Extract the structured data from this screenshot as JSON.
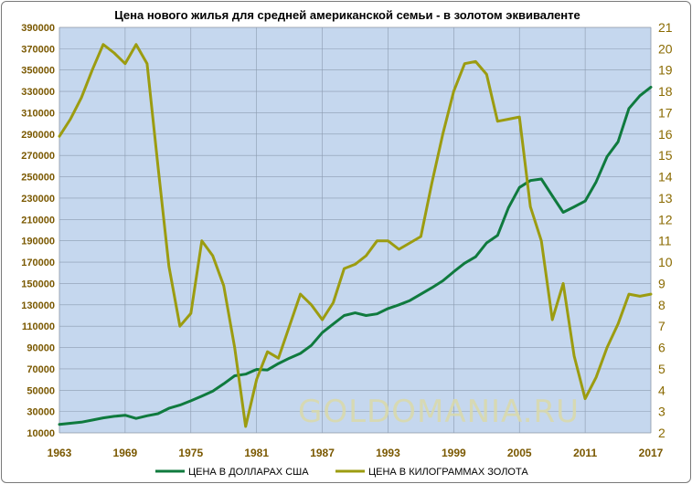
{
  "chart_data": {
    "type": "line",
    "title": "Цена нового жилья для средней американской семьи - в золотом эквиваленте",
    "watermark": "GOLDOMANIA.RU",
    "x_ticks": [
      "1963",
      "1969",
      "1975",
      "1981",
      "1987",
      "1993",
      "1999",
      "2005",
      "2011",
      "2017"
    ],
    "xlim": [
      1963,
      2017
    ],
    "y_left": {
      "ticks": [
        "390000",
        "370000",
        "350000",
        "330000",
        "310000",
        "290000",
        "270000",
        "250000",
        "230000",
        "210000",
        "190000",
        "170000",
        "150000",
        "130000",
        "110000",
        "90000",
        "70000",
        "50000",
        "30000",
        "10000"
      ],
      "ylim": [
        10000,
        390000
      ]
    },
    "y_right": {
      "ticks": [
        "21",
        "20",
        "19",
        "18",
        "17",
        "16",
        "15",
        "14",
        "13",
        "12",
        "11",
        "10",
        "9",
        "8",
        "7",
        "6",
        "5",
        "4",
        "3",
        "2"
      ],
      "ylim": [
        2,
        21
      ]
    },
    "series": [
      {
        "name": "ЦЕНА В ДОЛЛАРАХ США",
        "axis": "left",
        "color": "#0f7a3e",
        "points": [
          [
            1963,
            18000
          ],
          [
            1964,
            19000
          ],
          [
            1965,
            20000
          ],
          [
            1966,
            22000
          ],
          [
            1967,
            24000
          ],
          [
            1968,
            25500
          ],
          [
            1969,
            26500
          ],
          [
            1970,
            23500
          ],
          [
            1971,
            26000
          ],
          [
            1972,
            28000
          ],
          [
            1973,
            33000
          ],
          [
            1974,
            36000
          ],
          [
            1975,
            40000
          ],
          [
            1976,
            44500
          ],
          [
            1977,
            49000
          ],
          [
            1978,
            56000
          ],
          [
            1979,
            63500
          ],
          [
            1980,
            65000
          ],
          [
            1981,
            69500
          ],
          [
            1982,
            69000
          ],
          [
            1983,
            75000
          ],
          [
            1984,
            80000
          ],
          [
            1985,
            84500
          ],
          [
            1986,
            92000
          ],
          [
            1987,
            104000
          ],
          [
            1988,
            112000
          ],
          [
            1989,
            120000
          ],
          [
            1990,
            122500
          ],
          [
            1991,
            120000
          ],
          [
            1992,
            121500
          ],
          [
            1993,
            126500
          ],
          [
            1994,
            130000
          ],
          [
            1995,
            134000
          ],
          [
            1996,
            140000
          ],
          [
            1997,
            146000
          ],
          [
            1998,
            152500
          ],
          [
            1999,
            161000
          ],
          [
            2000,
            169000
          ],
          [
            2001,
            175000
          ],
          [
            2002,
            188000
          ],
          [
            2003,
            195000
          ],
          [
            2004,
            221000
          ],
          [
            2005,
            240000
          ],
          [
            2006,
            246500
          ],
          [
            2007,
            247900
          ],
          [
            2008,
            232100
          ],
          [
            2009,
            216700
          ],
          [
            2010,
            221800
          ],
          [
            2011,
            227200
          ],
          [
            2012,
            245200
          ],
          [
            2013,
            268900
          ],
          [
            2014,
            282800
          ],
          [
            2015,
            314000
          ],
          [
            2016,
            326000
          ],
          [
            2017,
            334000
          ]
        ]
      },
      {
        "name": "ЦЕНА В КИЛОГРАММАХ  ЗОЛОТА",
        "axis": "right",
        "color": "#9c9c10",
        "points": [
          [
            1963,
            15.9
          ],
          [
            1964,
            16.7
          ],
          [
            1965,
            17.7
          ],
          [
            1966,
            19.0
          ],
          [
            1967,
            20.2
          ],
          [
            1968,
            19.8
          ],
          [
            1969,
            19.3
          ],
          [
            1970,
            20.2
          ],
          [
            1971,
            19.3
          ],
          [
            1972,
            14.5
          ],
          [
            1973,
            9.8
          ],
          [
            1974,
            7.0
          ],
          [
            1975,
            7.6
          ],
          [
            1976,
            11.0
          ],
          [
            1977,
            10.3
          ],
          [
            1978,
            8.9
          ],
          [
            1979,
            6.0
          ],
          [
            1980,
            2.3
          ],
          [
            1981,
            4.5
          ],
          [
            1982,
            5.8
          ],
          [
            1983,
            5.5
          ],
          [
            1984,
            7.0
          ],
          [
            1985,
            8.5
          ],
          [
            1986,
            8.0
          ],
          [
            1987,
            7.3
          ],
          [
            1988,
            8.1
          ],
          [
            1989,
            9.7
          ],
          [
            1990,
            9.9
          ],
          [
            1991,
            10.3
          ],
          [
            1992,
            11.0
          ],
          [
            1993,
            11.0
          ],
          [
            1994,
            10.6
          ],
          [
            1995,
            10.9
          ],
          [
            1996,
            11.2
          ],
          [
            1997,
            13.7
          ],
          [
            1998,
            16.0
          ],
          [
            1999,
            18.0
          ],
          [
            2000,
            19.3
          ],
          [
            2001,
            19.4
          ],
          [
            2002,
            18.8
          ],
          [
            2003,
            16.6
          ],
          [
            2004,
            16.7
          ],
          [
            2005,
            16.8
          ],
          [
            2006,
            12.6
          ],
          [
            2007,
            11.0
          ],
          [
            2008,
            7.3
          ],
          [
            2009,
            9.0
          ],
          [
            2010,
            5.6
          ],
          [
            2011,
            3.6
          ],
          [
            2012,
            4.6
          ],
          [
            2013,
            6.0
          ],
          [
            2014,
            7.1
          ],
          [
            2015,
            8.5
          ],
          [
            2016,
            8.4
          ],
          [
            2017,
            8.5
          ]
        ]
      }
    ]
  }
}
